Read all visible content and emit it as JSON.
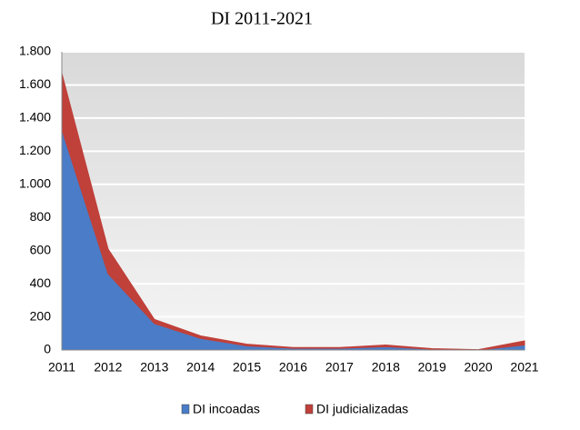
{
  "chart_data": {
    "type": "area",
    "stacked": true,
    "title": "DI 2011-2021",
    "categories": [
      "2011",
      "2012",
      "2013",
      "2014",
      "2015",
      "2016",
      "2017",
      "2018",
      "2019",
      "2020",
      "2021"
    ],
    "series": [
      {
        "name": "DI incoadas",
        "color": "#4a7cc7",
        "values": [
          1330,
          460,
          160,
          70,
          25,
          10,
          10,
          20,
          5,
          0,
          30
        ]
      },
      {
        "name": "DI judicializadas",
        "color": "#c0403a",
        "values": [
          340,
          150,
          25,
          15,
          10,
          5,
          5,
          10,
          3,
          2,
          25
        ]
      }
    ],
    "ylim": [
      0,
      1800
    ],
    "yticks": [
      0,
      200,
      400,
      600,
      800,
      {
        "value": 1000,
        "label": "1.000"
      },
      {
        "value": 1200,
        "label": "1.200"
      },
      {
        "value": 1400,
        "label": "1.400"
      },
      {
        "value": 1600,
        "label": "1.600"
      },
      {
        "value": 1800,
        "label": "1.800"
      }
    ],
    "grid": true,
    "legend": "bottom"
  }
}
